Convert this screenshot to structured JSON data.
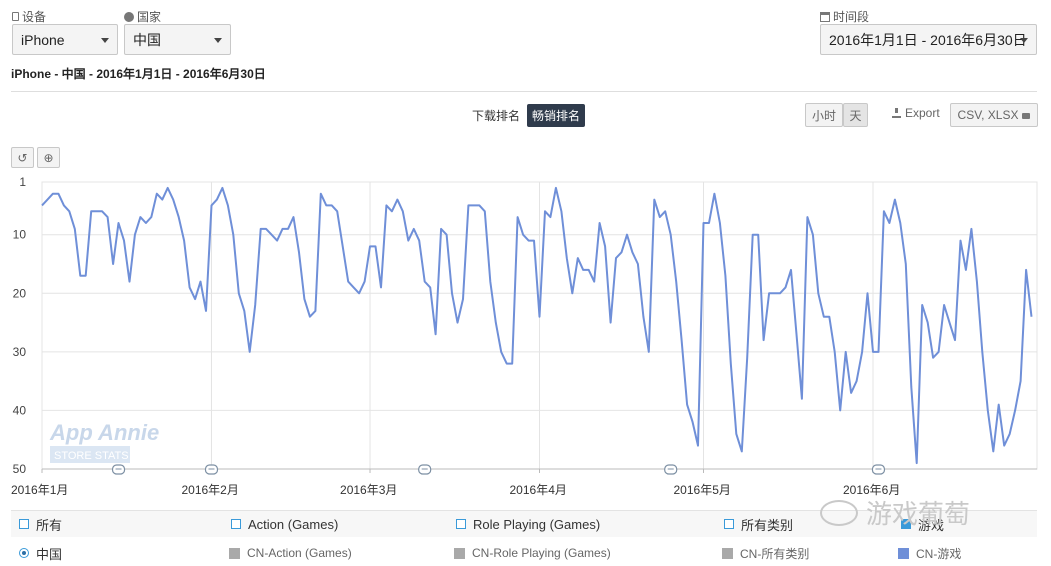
{
  "controls": {
    "device_label": "设备",
    "device_value": "iPhone",
    "country_label": "国家",
    "country_value": "中国",
    "period_label": "时间段",
    "period_value": "2016年1月1日 - 2016年6月30日"
  },
  "subtitle": "iPhone - 中国 - 2016年1月1日 - 2016年6月30日",
  "tabs": [
    {
      "label": "下载排名",
      "active": false
    },
    {
      "label": "畅销排名",
      "active": true
    }
  ],
  "granularity": {
    "hour": "小时",
    "day": "天"
  },
  "export": {
    "label": "Export",
    "formats": "CSV, XLSX"
  },
  "tools": {
    "reset_icon": "reset-icon",
    "zoom_icon": "zoom-icon",
    "reset_glyph": "↺",
    "zoom_glyph": "⊕"
  },
  "watermark_chart": {
    "line1": "App Annie",
    "line2": "STORE STATS"
  },
  "watermark_corner": "游戏葡萄",
  "chart_data": {
    "type": "line",
    "y_inverted": true,
    "ylim": [
      1,
      50
    ],
    "yticks": [
      1,
      10,
      20,
      30,
      40,
      50
    ],
    "x_labels": [
      "2016年1月",
      "2016年2月",
      "2016年3月",
      "2016年4月",
      "2016年5月",
      "2016年6月"
    ],
    "x_label_days": [
      0,
      31,
      60,
      91,
      121,
      152
    ],
    "total_days": 182,
    "annotation_days": [
      14,
      31,
      70,
      115,
      153
    ],
    "grid": true,
    "series": [
      {
        "name": "CN-游戏",
        "color": "#6f8fd8",
        "x_start": "2016-01-01",
        "values": [
          5,
          4,
          3,
          3,
          5,
          6,
          9,
          17,
          17,
          6,
          6,
          6,
          7,
          15,
          8,
          11,
          18,
          10,
          7,
          8,
          7,
          3,
          4,
          2,
          4,
          7,
          11,
          19,
          21,
          18,
          23,
          5,
          4,
          2,
          5,
          10,
          20,
          23,
          30,
          22,
          9,
          9,
          10,
          11,
          9,
          9,
          7,
          13,
          21,
          24,
          23,
          3,
          5,
          5,
          6,
          12,
          18,
          19,
          20,
          18,
          12,
          12,
          19,
          5,
          6,
          4,
          6,
          11,
          9,
          11,
          18,
          19,
          27,
          9,
          10,
          20,
          25,
          21,
          5,
          5,
          5,
          6,
          18,
          25,
          30,
          32,
          32,
          7,
          10,
          11,
          11,
          24,
          6,
          7,
          2,
          6,
          14,
          20,
          14,
          16,
          16,
          18,
          8,
          12,
          25,
          14,
          13,
          10,
          13,
          15,
          24,
          30,
          4,
          7,
          6,
          10,
          18,
          28,
          39,
          42,
          46,
          8,
          8,
          3,
          8,
          17,
          32,
          44,
          47,
          31,
          10,
          10,
          28,
          20,
          20,
          20,
          19,
          16,
          27,
          38,
          7,
          10,
          20,
          24,
          24,
          30,
          40,
          30,
          37,
          35,
          30,
          20,
          30,
          30,
          6,
          8,
          4,
          8,
          15,
          36,
          49,
          22,
          25,
          31,
          30,
          22,
          25,
          28,
          11,
          16,
          9,
          18,
          30,
          40,
          47,
          39,
          46,
          44,
          40,
          35,
          16,
          24
        ]
      }
    ]
  },
  "legend": {
    "row1": [
      {
        "label": "所有",
        "kind": "checkbox"
      },
      {
        "label": "Action (Games)",
        "kind": "checkbox"
      },
      {
        "label": "Role Playing (Games)",
        "kind": "checkbox"
      },
      {
        "label": "所有类别",
        "kind": "checkbox"
      },
      {
        "label": "游戏",
        "kind": "checkbox-checked"
      }
    ],
    "row2": [
      {
        "label": "中国",
        "kind": "radio"
      },
      {
        "label": "CN-Action (Games)",
        "color": "#a9a9a9"
      },
      {
        "label": "CN-Role Playing (Games)",
        "color": "#a9a9a9"
      },
      {
        "label": "CN-所有类别",
        "color": "#a9a9a9"
      },
      {
        "label": "CN-游戏",
        "color": "#6f8fd8"
      }
    ]
  }
}
